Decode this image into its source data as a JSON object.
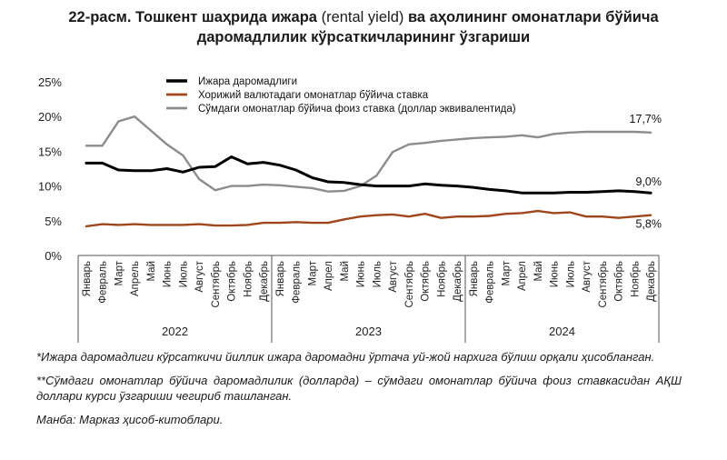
{
  "title": {
    "part1": "22-расм. Тошкент шаҳрида ижара ",
    "part2": "(rental yield)",
    "part3": " ва аҳолининг омонатлари бўйича",
    "line2": "даромадлилик кўрсаткичларининг ўзгариши"
  },
  "notes": {
    "note1": "*Ижара даромадлиги кўрсаткичи йиллик ижара даромадни ўртача уй-жой нархига бўлиш орқали ҳисобланган.",
    "note2": "**Сўмдаги омонатлар бўйича даромадлилик (долларда) – сўмдаги омонатлар бўйича фоиз ставкасидан АҚШ доллари курси ўзгариши чегириб ташланган.",
    "source": "Манба: Марказ ҳисоб-китоблари."
  },
  "chart_data": {
    "type": "line",
    "x": [
      "Январь",
      "Февраль",
      "Март",
      "Апрель",
      "Май",
      "Июнь",
      "Июль",
      "Август",
      "Сентябрь",
      "Октябрь",
      "Ноябрь",
      "Декабрь",
      "Январь",
      "Февраль",
      "Март",
      "Апрел",
      "Май",
      "Июнь",
      "Июль",
      "Август",
      "Сентябрь",
      "Октябрь",
      "Ноябрь",
      "Декабрь",
      "Январь",
      "Февраль",
      "Март",
      "Апрел",
      "Май",
      "Июнь",
      "Июль",
      "Август",
      "Сентябрь",
      "Октябрь",
      "Ноябрь",
      "Декабрь"
    ],
    "years": [
      {
        "label": "2022",
        "start": 0,
        "end": 11
      },
      {
        "label": "2023",
        "start": 12,
        "end": 23
      },
      {
        "label": "2024",
        "start": 24,
        "end": 35
      }
    ],
    "y_ticks": [
      "0%",
      "5%",
      "10%",
      "15%",
      "20%",
      "25%"
    ],
    "ylim": [
      0,
      25
    ],
    "grid": "none",
    "legend_position": "top-left",
    "series": [
      {
        "name": "Ижара даромадлиги",
        "color": "#000000",
        "width": 3,
        "values": [
          13.3,
          13.3,
          12.3,
          12.2,
          12.2,
          12.5,
          12.0,
          12.7,
          12.8,
          14.2,
          13.2,
          13.4,
          13.0,
          12.3,
          11.2,
          10.6,
          10.5,
          10.2,
          10.0,
          10.0,
          10.0,
          10.3,
          10.1,
          10.0,
          9.8,
          9.5,
          9.3,
          9.0,
          9.0,
          9.0,
          9.1,
          9.1,
          9.2,
          9.3,
          9.2,
          9.0
        ],
        "end_label": "9,0%"
      },
      {
        "name": "Хорижий валютадаги омонатлар бўйича ставка",
        "color": "#a0461c",
        "width": 2.4,
        "values": [
          4.2,
          4.5,
          4.4,
          4.5,
          4.4,
          4.4,
          4.4,
          4.5,
          4.3,
          4.3,
          4.4,
          4.7,
          4.7,
          4.8,
          4.7,
          4.7,
          5.2,
          5.6,
          5.8,
          5.9,
          5.6,
          6.0,
          5.4,
          5.6,
          5.6,
          5.7,
          6.0,
          6.1,
          6.4,
          6.1,
          6.2,
          5.6,
          5.6,
          5.4,
          5.6,
          5.8
        ],
        "end_label": "5,8%"
      },
      {
        "name": "Сўмдаги омонатлар бўйича фоиз ставка (доллар эквивалентида)",
        "color": "#8c8c8c",
        "width": 2.4,
        "values": [
          15.8,
          15.8,
          19.3,
          20.0,
          18.0,
          16.0,
          14.4,
          11.0,
          9.4,
          10.0,
          10.0,
          10.2,
          10.1,
          9.9,
          9.7,
          9.2,
          9.3,
          10.0,
          11.5,
          14.9,
          16.0,
          16.2,
          16.5,
          16.7,
          16.9,
          17.0,
          17.1,
          17.3,
          17.0,
          17.5,
          17.7,
          17.8,
          17.8,
          17.8,
          17.8,
          17.7
        ],
        "end_label": "17,7%"
      }
    ]
  }
}
